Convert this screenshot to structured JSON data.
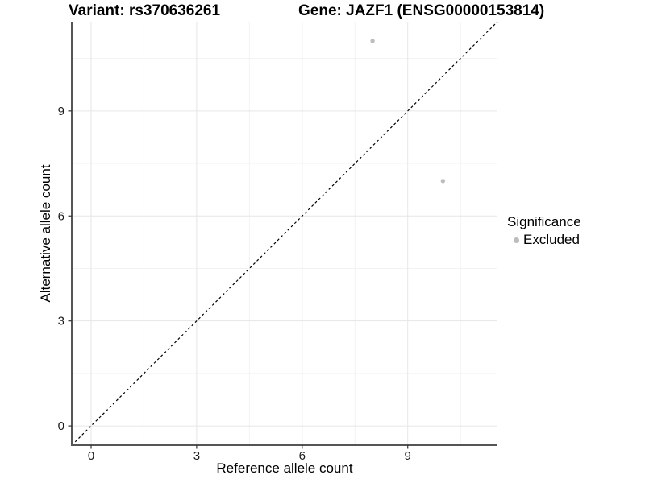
{
  "header": {
    "variant_title": "Variant: rs370636261",
    "gene_title": "Gene: JAZF1 (ENSG00000153814)"
  },
  "legend": {
    "title": "Significance",
    "entries": [
      {
        "label": "Excluded",
        "color": "#bdbdbd"
      }
    ]
  },
  "chart_data": {
    "type": "scatter",
    "title": "Variant: rs370636261    Gene: JAZF1 (ENSG00000153814)",
    "xlabel": "Reference allele count",
    "ylabel": "Alternative allele count",
    "xlim": [
      -0.55,
      11.55
    ],
    "ylim": [
      -0.55,
      11.55
    ],
    "xticks": [
      0,
      3,
      6,
      9
    ],
    "yticks": [
      0,
      3,
      6,
      9
    ],
    "x_minor_ticks": [
      1.5,
      4.5,
      7.5,
      10.5
    ],
    "y_minor_ticks": [
      1.5,
      4.5,
      7.5,
      10.5
    ],
    "grid": true,
    "legend_position": "right",
    "series": [
      {
        "name": "Excluded",
        "color": "#bdbdbd",
        "points": [
          {
            "x": 8,
            "y": 11
          },
          {
            "x": 10,
            "y": 7
          }
        ]
      }
    ],
    "reference_line": {
      "type": "identity",
      "slope": 1,
      "intercept": 0,
      "style": "dashed",
      "color": "#000000"
    }
  },
  "style": {
    "point_color": "#bdbdbd",
    "grid_major_color": "#e6e6e6",
    "grid_minor_color": "#f2f2f2",
    "axis_line_color": "#555555",
    "tick_mark_color": "#333333",
    "tick_label_color": "#1a1a1a",
    "background": "#ffffff"
  }
}
